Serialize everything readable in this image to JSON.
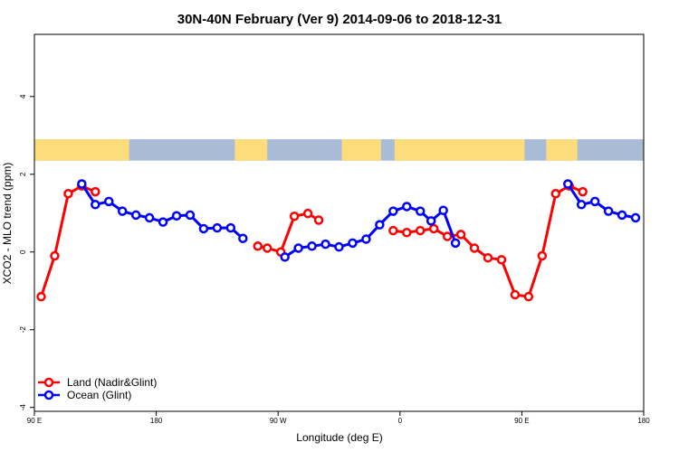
{
  "chart_data": {
    "type": "line",
    "title": "30N-40N February (Ver 9)   2014-09-06 to 2018-12-31",
    "xlabel": "Longitude (deg E)",
    "ylabel": "XCO2 - MLO trend (ppm)",
    "xlim": [
      90,
      540
    ],
    "ylim": [
      -4.1,
      5.6
    ],
    "x_ticks": [
      {
        "value": 90,
        "label": "90 E"
      },
      {
        "value": 180,
        "label": "180"
      },
      {
        "value": 270,
        "label": "90 W"
      },
      {
        "value": 360,
        "label": "0"
      },
      {
        "value": 450,
        "label": "90 E"
      },
      {
        "value": 540,
        "label": "180"
      }
    ],
    "y_ticks": [
      {
        "value": -4,
        "label": "-4"
      },
      {
        "value": -2,
        "label": "-2"
      },
      {
        "value": 0,
        "label": "0"
      },
      {
        "value": 2,
        "label": "2"
      },
      {
        "value": 4,
        "label": "4"
      }
    ],
    "map_band": {
      "ymin": 2.35,
      "ymax": 2.9,
      "ocean_color": "#a8bcd8",
      "land_color": "#fddc7c"
    },
    "series": [
      {
        "name": "Land (Nadir&Glint)",
        "color": "#ff0000",
        "segments": [
          [
            [
              95,
              -1.15
            ],
            [
              105,
              -0.1
            ],
            [
              115,
              1.5
            ],
            [
              125,
              1.7
            ],
            [
              135,
              1.55
            ]
          ],
          [
            [
              255,
              0.15
            ],
            [
              262,
              0.1
            ],
            [
              272,
              0.0
            ],
            [
              282,
              0.92
            ],
            [
              292,
              0.99
            ],
            [
              300,
              0.82
            ]
          ],
          [
            [
              355,
              0.55
            ],
            [
              365,
              0.5
            ],
            [
              375,
              0.55
            ],
            [
              385,
              0.6
            ],
            [
              395,
              0.4
            ],
            [
              405,
              0.45
            ],
            [
              415,
              0.1
            ],
            [
              425,
              -0.15
            ],
            [
              435,
              -0.2
            ],
            [
              445,
              -1.1
            ],
            [
              455,
              -1.15
            ],
            [
              465,
              -0.1
            ],
            [
              475,
              1.5
            ],
            [
              485,
              1.7
            ],
            [
              495,
              1.55
            ]
          ]
        ]
      },
      {
        "name": "Ocean (Glint)",
        "color": "#0000ff",
        "segments": [
          [
            [
              125,
              1.75
            ],
            [
              135,
              1.22
            ],
            [
              145,
              1.3
            ],
            [
              155,
              1.05
            ],
            [
              165,
              0.95
            ],
            [
              175,
              0.88
            ],
            [
              185,
              0.77
            ],
            [
              195,
              0.93
            ],
            [
              205,
              0.95
            ],
            [
              215,
              0.6
            ],
            [
              225,
              0.62
            ],
            [
              235,
              0.62
            ],
            [
              244,
              0.35
            ]
          ],
          [
            [
              275,
              -0.13
            ],
            [
              285,
              0.1
            ],
            [
              295,
              0.15
            ],
            [
              305,
              0.2
            ],
            [
              315,
              0.13
            ],
            [
              325,
              0.23
            ],
            [
              335,
              0.33
            ],
            [
              345,
              0.7
            ],
            [
              355,
              1.05
            ],
            [
              365,
              1.17
            ],
            [
              375,
              1.05
            ],
            [
              383,
              0.8
            ],
            [
              392,
              1.07
            ],
            [
              401,
              0.23
            ]
          ],
          [
            [
              484,
              1.75
            ],
            [
              494,
              1.22
            ],
            [
              504,
              1.3
            ],
            [
              514,
              1.05
            ],
            [
              524,
              0.95
            ],
            [
              534,
              0.88
            ]
          ]
        ]
      }
    ],
    "legend": {
      "placement": "bottom-left"
    }
  }
}
